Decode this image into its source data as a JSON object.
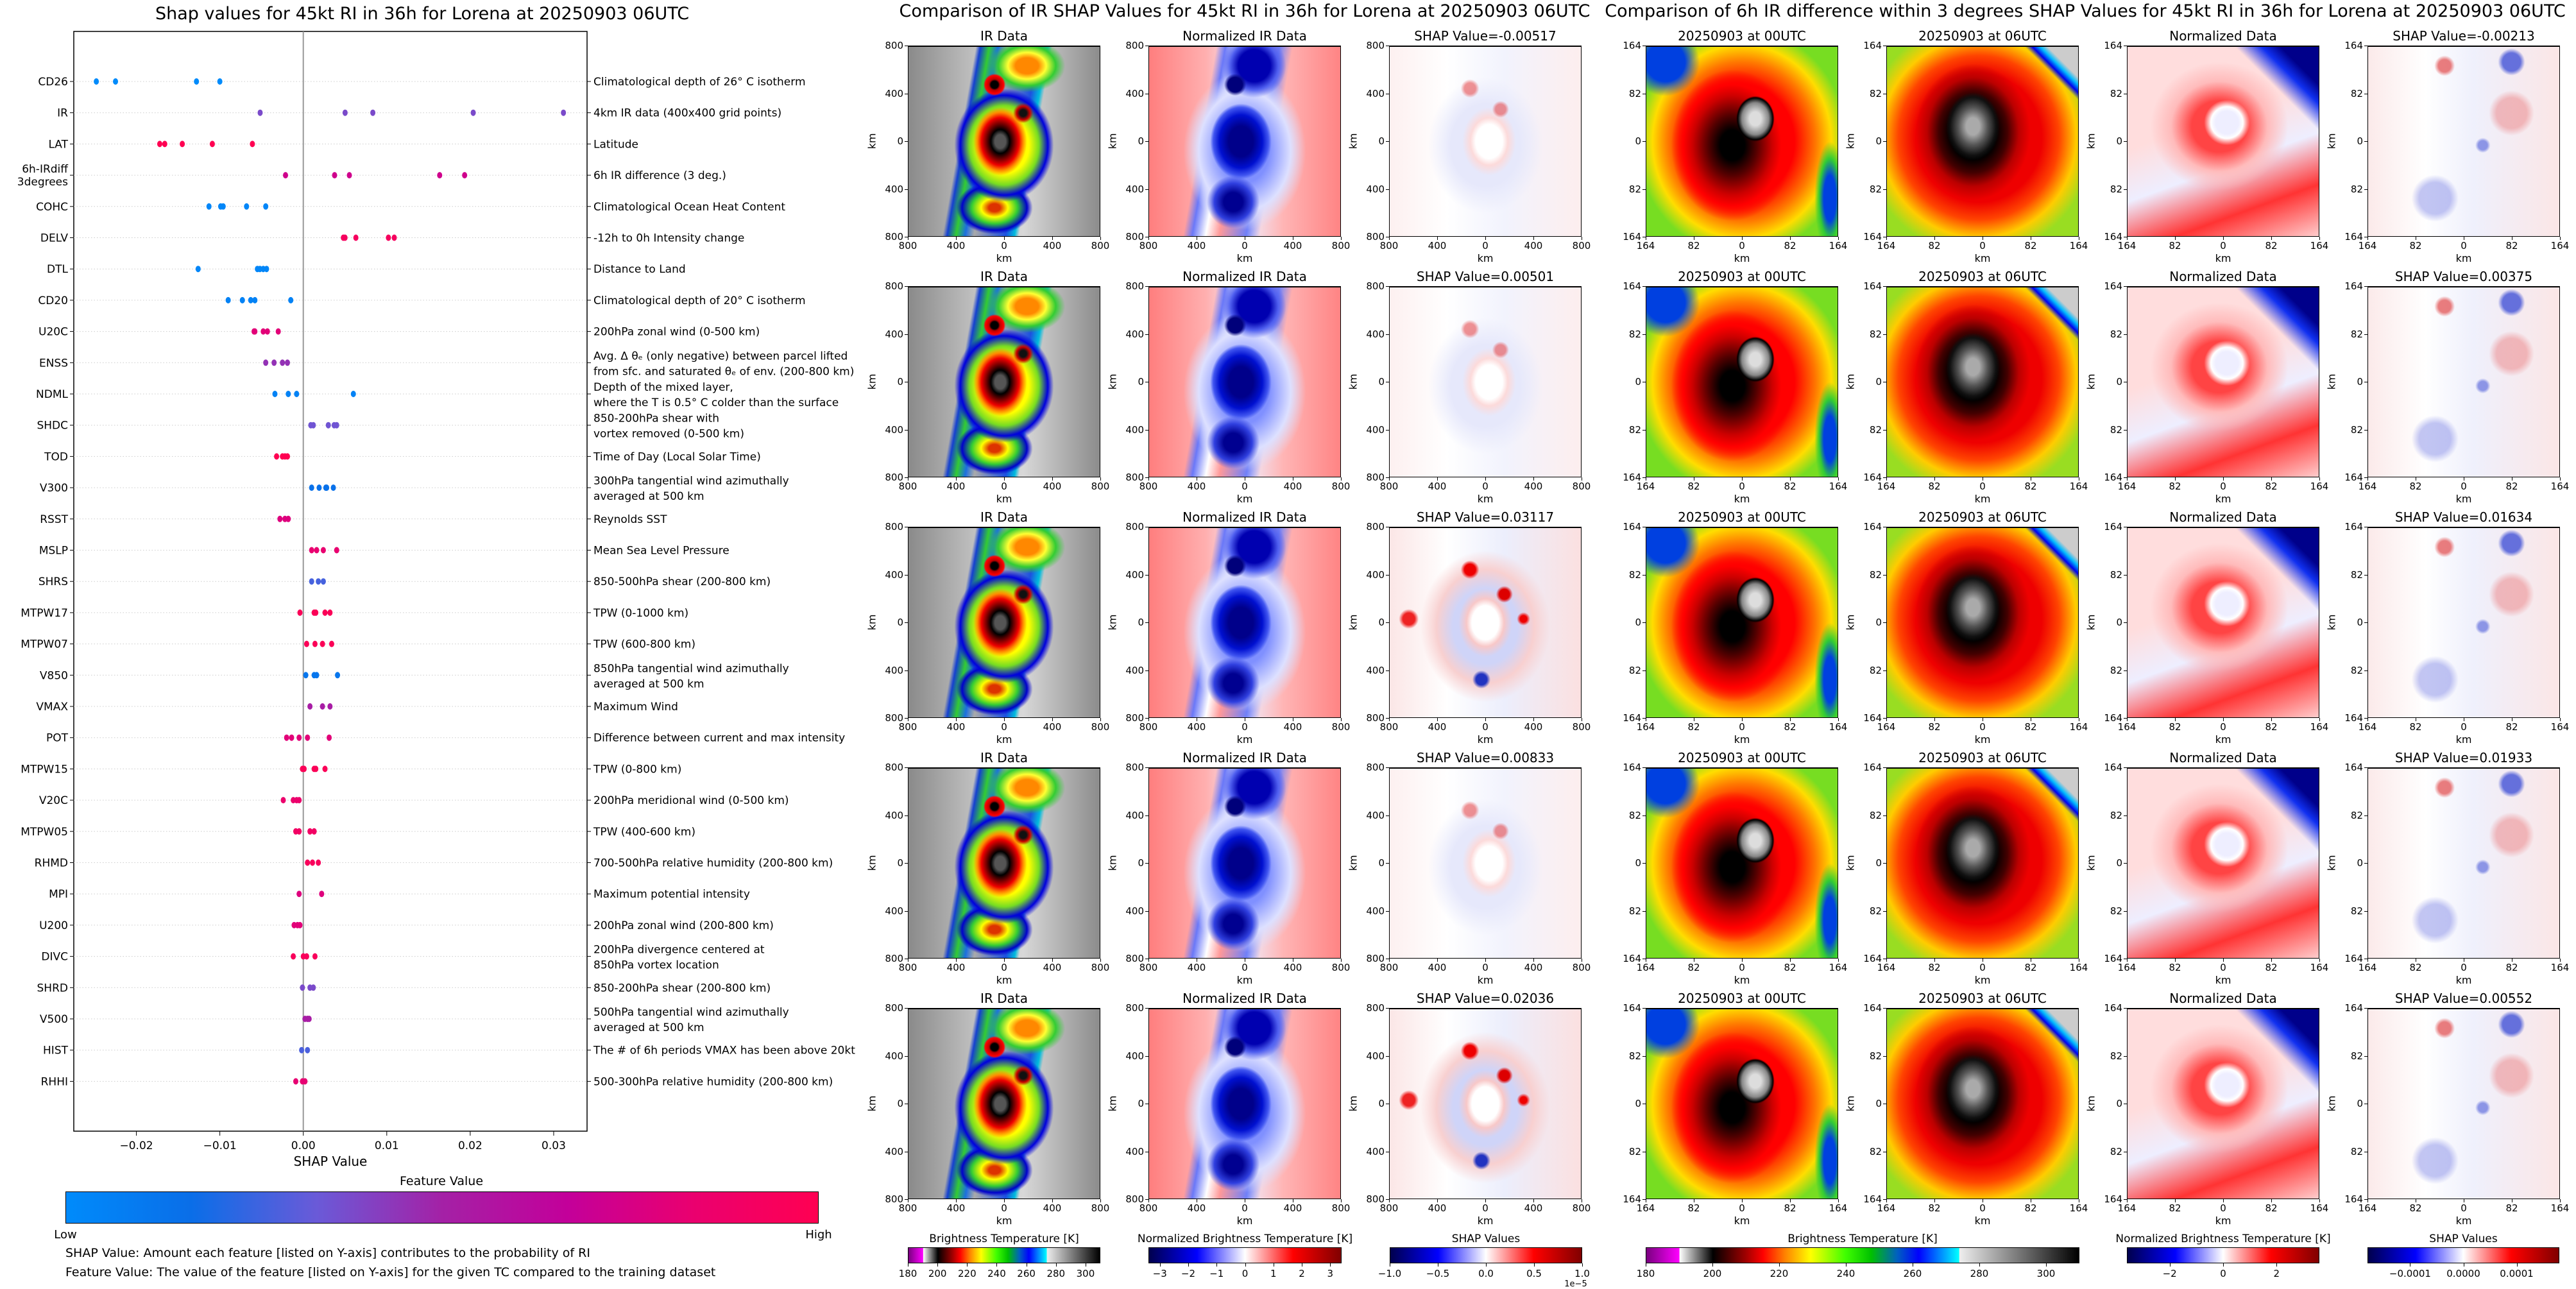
{
  "chart_data": {
    "type": "scatter",
    "title": "Shap values for 45kt RI in 36h for Lorena at 20250903 06UTC",
    "xlabel": "SHAP Value",
    "ylabel": "",
    "xlim": [
      -0.0275,
      0.034
    ],
    "xticks": [
      -0.02,
      -0.01,
      0.0,
      0.01,
      0.02,
      0.03
    ],
    "xtick_labels": [
      "−0.02",
      "−0.01",
      "0.00",
      "0.01",
      "0.02",
      "0.03"
    ],
    "grid": "horizontal dotted",
    "features": [
      {
        "name": "CD26",
        "description": "Climatological depth of 26° C isotherm",
        "shap_values": [
          -0.0248,
          -0.0225,
          -0.0128,
          -0.01
        ],
        "feature_value": 0.0
      },
      {
        "name": "IR",
        "description": "4km IR data (400x400 grid points)",
        "shap_values": [
          -0.00517,
          0.00501,
          0.00833,
          0.02036,
          0.03117
        ],
        "feature_value": 0.38
      },
      {
        "name": "LAT",
        "description": "Latitude",
        "shap_values": [
          -0.0172,
          -0.0166,
          -0.0145,
          -0.0109,
          -0.0061
        ],
        "feature_value": 1.0
      },
      {
        "name": "6h-IRdiff\n3degrees",
        "description": "6h IR difference (3 deg.)",
        "shap_values": [
          -0.00213,
          0.00375,
          0.00552,
          0.01634,
          0.01933
        ],
        "feature_value": 0.72
      },
      {
        "name": "COHC",
        "description": "Climatological Ocean Heat Content",
        "shap_values": [
          -0.0113,
          -0.0099,
          -0.0096,
          -0.0068,
          -0.0045
        ],
        "feature_value": 0.03
      },
      {
        "name": "DELV",
        "description": "-12h to 0h Intensity change",
        "shap_values": [
          0.0048,
          0.005,
          0.0063,
          0.0102,
          0.0109
        ],
        "feature_value": 0.93
      },
      {
        "name": "DTL",
        "description": "Distance to Land",
        "shap_values": [
          -0.0126,
          -0.0055,
          -0.0052,
          -0.0048,
          -0.0044
        ],
        "feature_value": 0.03
      },
      {
        "name": "CD20",
        "description": "Climatological depth of 20° C isotherm",
        "shap_values": [
          -0.009,
          -0.0073,
          -0.0063,
          -0.0058,
          -0.0015
        ],
        "feature_value": 0.05
      },
      {
        "name": "U20C",
        "description": "200hPa zonal wind (0-500 km)",
        "shap_values": [
          -0.0059,
          -0.0058,
          -0.0048,
          -0.0043,
          -0.003
        ],
        "feature_value": 0.8
      },
      {
        "name": "ENSS",
        "description": "Avg. Δ θₑ (only negative) between parcel lifted\nfrom sfc. and saturated θₑ of env. (200-800 km)",
        "shap_values": [
          -0.0045,
          -0.0035,
          -0.0025,
          -0.0019
        ],
        "feature_value": 0.45
      },
      {
        "name": "NDML",
        "description": "Depth of the mixed layer,\nwhere the T is 0.5° C colder than the surface",
        "shap_values": [
          -0.0034,
          -0.0018,
          -0.0008,
          0.006
        ],
        "feature_value": 0.05
      },
      {
        "name": "SHDC",
        "description": "850-200hPa shear with\nvortex removed (0-500 km)",
        "shap_values": [
          0.0009,
          0.0012,
          0.003,
          0.0037,
          0.004
        ],
        "feature_value": 0.35
      },
      {
        "name": "TOD",
        "description": "Time of Day (Local Solar Time)",
        "shap_values": [
          -0.0032,
          -0.0025,
          -0.0022,
          -0.0019
        ],
        "feature_value": 1.0
      },
      {
        "name": "V300",
        "description": "300hPa tangential wind azimuthally\naveraged at 500 km",
        "shap_values": [
          0.001,
          0.0019,
          0.0027,
          0.0028,
          0.0036
        ],
        "feature_value": 0.15
      },
      {
        "name": "RSST",
        "description": "Reynolds SST",
        "shap_values": [
          -0.0028,
          -0.0022,
          -0.0018
        ],
        "feature_value": 0.78
      },
      {
        "name": "MSLP",
        "description": "Mean Sea Level Pressure",
        "shap_values": [
          0.001,
          0.0016,
          0.0024,
          0.004
        ],
        "feature_value": 0.83
      },
      {
        "name": "SHRS",
        "description": "850-500hPa shear (200-800 km)",
        "shap_values": [
          0.001,
          0.0018,
          0.0024
        ],
        "feature_value": 0.27
      },
      {
        "name": "MTPW17",
        "description": "TPW (0-1000 km)",
        "shap_values": [
          -0.0004,
          0.0013,
          0.0015,
          0.0026,
          0.0032
        ],
        "feature_value": 0.97
      },
      {
        "name": "MTPW07",
        "description": "TPW (600-800 km)",
        "shap_values": [
          0.0004,
          0.0014,
          0.0023,
          0.0034
        ],
        "feature_value": 0.97
      },
      {
        "name": "V850",
        "description": "850hPa tangential wind azimuthally\naveraged at 500 km",
        "shap_values": [
          0.0003,
          0.0013,
          0.0016,
          0.0041
        ],
        "feature_value": 0.12
      },
      {
        "name": "VMAX",
        "description": "Maximum Wind",
        "shap_values": [
          0.0008,
          0.0023,
          0.0032
        ],
        "feature_value": 0.52
      },
      {
        "name": "POT",
        "description": "Difference between current and max intensity",
        "shap_values": [
          -0.002,
          -0.0014,
          -0.0005,
          0.0005,
          0.0031
        ],
        "feature_value": 0.8
      },
      {
        "name": "MTPW15",
        "description": "TPW (0-800 km)",
        "shap_values": [
          -0.0001,
          0.0001,
          0.0013,
          0.0015,
          0.0026
        ],
        "feature_value": 0.97
      },
      {
        "name": "V20C",
        "description": "200hPa meridional wind (0-500 km)",
        "shap_values": [
          -0.0024,
          -0.0012,
          -0.0008,
          -0.0005
        ],
        "feature_value": 0.85
      },
      {
        "name": "MTPW05",
        "description": "TPW (400-600 km)",
        "shap_values": [
          -0.0009,
          -0.0005,
          0.0008,
          0.0013
        ],
        "feature_value": 0.9
      },
      {
        "name": "RHMD",
        "description": "700-500hPa relative humidity (200-800 km)",
        "shap_values": [
          0.0005,
          0.0011,
          0.0018
        ],
        "feature_value": 0.95
      },
      {
        "name": "MPI",
        "description": "Maximum potential intensity",
        "shap_values": [
          -0.0005,
          0.0022
        ],
        "feature_value": 0.78
      },
      {
        "name": "U200",
        "description": "200hPa zonal wind (200-800 km)",
        "shap_values": [
          -0.0011,
          -0.0007,
          -0.0004
        ],
        "feature_value": 0.8
      },
      {
        "name": "DIVC",
        "description": "200hPa divergence centered at\n850hPa vortex location",
        "shap_values": [
          -0.0012,
          0.0,
          0.0004,
          0.0014
        ],
        "feature_value": 0.95
      },
      {
        "name": "SHRD",
        "description": "850-200hPa shear (200-800 km)",
        "shap_values": [
          -0.0001,
          0.0008,
          0.0012
        ],
        "feature_value": 0.38
      },
      {
        "name": "V500",
        "description": "500hPa tangential wind azimuthally\naveraged at 500 km",
        "shap_values": [
          0.0002,
          0.0005,
          0.0007
        ],
        "feature_value": 0.52
      },
      {
        "name": "HIST",
        "description": "The # of 6h periods VMAX has been above 20kt",
        "shap_values": [
          -0.0002,
          0.0005
        ],
        "feature_value": 0.28
      },
      {
        "name": "RHHI",
        "description": "500-300hPa relative humidity (200-800 km)",
        "shap_values": [
          -0.0009,
          -0.0001,
          0.0002
        ],
        "feature_value": 0.82
      }
    ],
    "colorbar": {
      "title": "Feature Value",
      "low": "Low",
      "high": "High",
      "colors": [
        "#008bfb",
        "#0a6ee8",
        "#6a5ad8",
        "#a421a6",
        "#c3009a",
        "#ea006f",
        "#ff0052"
      ]
    },
    "notes": [
      "SHAP Value: Amount each feature [listed on Y-axis] contributes to the probability of RI",
      "Feature Value: The value of the feature [listed on Y-axis] for the given TC compared to the training dataset"
    ]
  },
  "ir_figure": {
    "title": "Comparison of IR SHAP Values for 45kt RI in 36h for Lorena at 20250903 06UTC",
    "axis_label": "km",
    "ticks": [
      "800",
      "400",
      "0",
      "400",
      "800"
    ],
    "rows": [
      {
        "panels": [
          "IR Data",
          "Normalized IR Data",
          "SHAP Value=-0.00517"
        ]
      },
      {
        "panels": [
          "IR Data",
          "Normalized IR Data",
          "SHAP Value=0.00501"
        ]
      },
      {
        "panels": [
          "IR Data",
          "Normalized IR Data",
          "SHAP Value=0.03117"
        ]
      },
      {
        "panels": [
          "IR Data",
          "Normalized IR Data",
          "SHAP Value=0.00833"
        ]
      },
      {
        "panels": [
          "IR Data",
          "Normalized IR Data",
          "SHAP Value=0.02036"
        ]
      }
    ],
    "colorbars": [
      {
        "title": "Brightness Temperature [K]",
        "range": [
          180,
          310
        ],
        "ticks": [
          "180",
          "200",
          "220",
          "240",
          "260",
          "280",
          "300"
        ],
        "tick_values": [
          180,
          200,
          220,
          240,
          260,
          280,
          300
        ]
      },
      {
        "title": "Normalized Brightness Temperature [K]",
        "range": [
          -3.4,
          3.4
        ],
        "ticks": [
          "−3",
          "−2",
          "−1",
          "0",
          "1",
          "2",
          "3"
        ],
        "tick_values": [
          -3,
          -2,
          -1,
          0,
          1,
          2,
          3
        ]
      },
      {
        "title": "SHAP Values",
        "range": [
          -1.0,
          1.0
        ],
        "ticks": [
          "−1.0",
          "−0.5",
          "0.0",
          "0.5",
          "1.0"
        ],
        "tick_values": [
          -1,
          -0.5,
          0,
          0.5,
          1
        ],
        "offset_text": "1e−5"
      }
    ]
  },
  "irdiff_figure": {
    "title": "Comparison of 6h IR difference within 3 degrees SHAP Values for 45kt RI in 36h for Lorena at 20250903 06UTC",
    "axis_label": "km",
    "ticks": [
      "164",
      "82",
      "0",
      "82",
      "164"
    ],
    "rows": [
      {
        "panels": [
          "20250903 at 00UTC",
          "20250903 at 06UTC",
          "Normalized Data",
          "SHAP Value=-0.00213"
        ]
      },
      {
        "panels": [
          "20250903 at 00UTC",
          "20250903 at 06UTC",
          "Normalized Data",
          "SHAP Value=0.00375"
        ]
      },
      {
        "panels": [
          "20250903 at 00UTC",
          "20250903 at 06UTC",
          "Normalized Data",
          "SHAP Value=0.01634"
        ]
      },
      {
        "panels": [
          "20250903 at 00UTC",
          "20250903 at 06UTC",
          "Normalized Data",
          "SHAP Value=0.01933"
        ]
      },
      {
        "panels": [
          "20250903 at 00UTC",
          "20250903 at 06UTC",
          "Normalized Data",
          "SHAP Value=0.00552"
        ]
      }
    ],
    "colorbars": [
      {
        "title": "Brightness Temperature [K]",
        "range": [
          180,
          310
        ],
        "ticks": [
          "180",
          "200",
          "220",
          "240",
          "260",
          "280",
          "300"
        ],
        "tick_values": [
          180,
          200,
          220,
          240,
          260,
          280,
          300
        ]
      },
      {
        "title": "Normalized Brightness Temperature [K]",
        "range": [
          -3.6,
          3.6
        ],
        "ticks": [
          "−2",
          "0",
          "2"
        ],
        "tick_values": [
          -2,
          0,
          2
        ]
      },
      {
        "title": "SHAP Values",
        "range": [
          -0.00018,
          0.00018
        ],
        "ticks": [
          "−0.0001",
          "0.0000",
          "0.0001"
        ],
        "tick_values": [
          -0.0001,
          0,
          0.0001
        ]
      }
    ]
  },
  "colormaps": {
    "brightness_temperature": "linear-gradient(90deg,#7a0080 0%,#ff00ff 7.6%,#ffffff 7.7%,#000 15.4%,#a00000 23%,#ff0000 27%,#ff8000 32%,#ffff00 38%,#40ff00 46%,#00c000 52%,#0060c0 58%,#0000ff 63%,#00ffff 72.3%,#eeeeee 72.4%,#000000 100%)",
    "seismic": "linear-gradient(90deg,#00004d 0%,#0000ff 25%,#ffffff 50%,#ff0000 75%,#800000 100%)"
  }
}
